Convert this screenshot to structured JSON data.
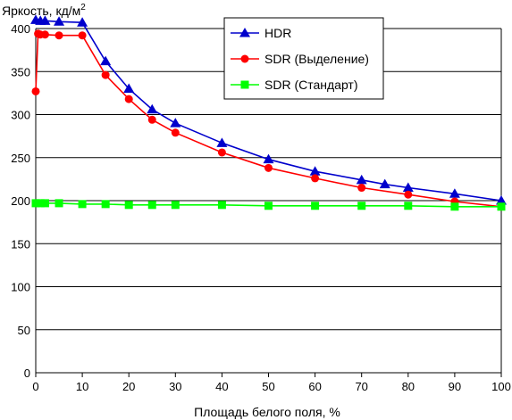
{
  "chart_data": {
    "type": "line",
    "ylabel": "Яркость, кд/м",
    "ylabel_sup": "2",
    "xlabel": "Площадь белого поля, %",
    "xlim": [
      0,
      100
    ],
    "ylim": [
      0,
      400
    ],
    "x_ticks": [
      0,
      10,
      20,
      30,
      40,
      50,
      60,
      70,
      80,
      90,
      100
    ],
    "y_ticks": [
      0,
      50,
      100,
      150,
      200,
      250,
      300,
      350,
      400
    ],
    "grid": "horizontal",
    "legend_position": "top-right",
    "series": [
      {
        "name": "HDR",
        "color": "#0000cc",
        "marker": "triangle",
        "points": [
          [
            0,
            410
          ],
          [
            1,
            409
          ],
          [
            2,
            409
          ],
          [
            5,
            408
          ],
          [
            10,
            407
          ],
          [
            15,
            362
          ],
          [
            20,
            330
          ],
          [
            25,
            306
          ],
          [
            30,
            290
          ],
          [
            40,
            267
          ],
          [
            50,
            248
          ],
          [
            60,
            234
          ],
          [
            70,
            224
          ],
          [
            75,
            219
          ],
          [
            80,
            215
          ],
          [
            90,
            208
          ],
          [
            100,
            200
          ]
        ]
      },
      {
        "name": "SDR (Выделение)",
        "color": "#ff0000",
        "marker": "circle",
        "points": [
          [
            0,
            327
          ],
          [
            0.5,
            394
          ],
          [
            1,
            393
          ],
          [
            2,
            393
          ],
          [
            5,
            392
          ],
          [
            10,
            392
          ],
          [
            15,
            346
          ],
          [
            20,
            318
          ],
          [
            25,
            294
          ],
          [
            30,
            279
          ],
          [
            40,
            256
          ],
          [
            50,
            238
          ],
          [
            60,
            226
          ],
          [
            70,
            215
          ],
          [
            80,
            207
          ],
          [
            90,
            199
          ],
          [
            100,
            193
          ]
        ]
      },
      {
        "name": "SDR (Стандарт)",
        "color": "#00ff00",
        "marker": "square",
        "points": [
          [
            0,
            197
          ],
          [
            1,
            197
          ],
          [
            2,
            197
          ],
          [
            5,
            197
          ],
          [
            10,
            196
          ],
          [
            15,
            196
          ],
          [
            20,
            195
          ],
          [
            25,
            195
          ],
          [
            30,
            195
          ],
          [
            40,
            195
          ],
          [
            50,
            194
          ],
          [
            60,
            194
          ],
          [
            70,
            194
          ],
          [
            80,
            194
          ],
          [
            90,
            193
          ],
          [
            100,
            193
          ]
        ]
      }
    ]
  }
}
